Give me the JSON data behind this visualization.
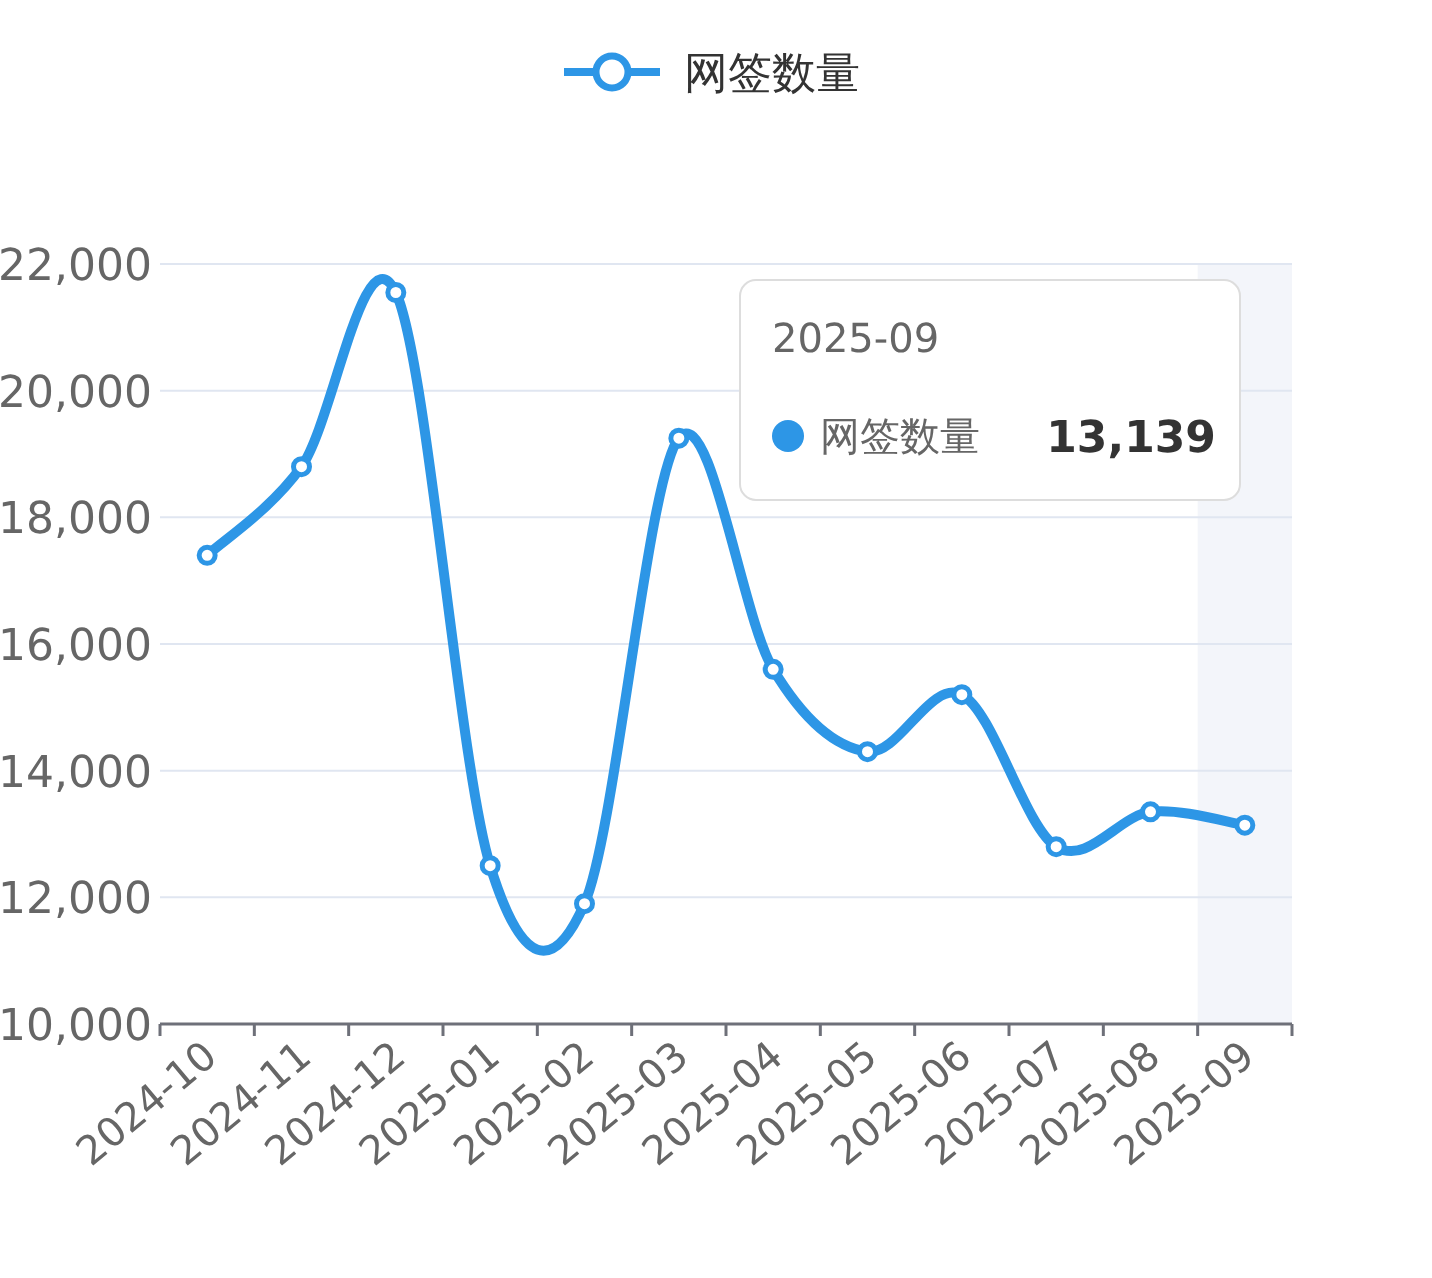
{
  "chart_data": {
    "type": "line",
    "categories": [
      "2024-10",
      "2024-11",
      "2024-12",
      "2025-01",
      "2025-02",
      "2025-03",
      "2025-04",
      "2025-05",
      "2025-06",
      "2025-07",
      "2025-08",
      "2025-09"
    ],
    "series": [
      {
        "name": "网签数量",
        "color": "#2d96e6",
        "values": [
          17400,
          18800,
          21550,
          12500,
          11900,
          19250,
          15600,
          14300,
          15200,
          12800,
          13350,
          13139
        ]
      }
    ],
    "ylim": [
      10000,
      22000
    ],
    "yticks": [
      {
        "value": 10000,
        "label": "10,000"
      },
      {
        "value": 12000,
        "label": "12,000"
      },
      {
        "value": 14000,
        "label": "14,000"
      },
      {
        "value": 16000,
        "label": "16,000"
      },
      {
        "value": 18000,
        "label": "18,000"
      },
      {
        "value": 20000,
        "label": "20,000"
      },
      {
        "value": 22000,
        "label": "22,000"
      }
    ],
    "grid": "y",
    "legend": "top",
    "marker": "circle",
    "bands": [
      {
        "axis": "x",
        "from": "2025-09",
        "to": "2025-09",
        "color": "#f3f5fa"
      }
    ],
    "annotations": [
      "2025-09",
      "网签数量",
      "13,139"
    ]
  }
}
